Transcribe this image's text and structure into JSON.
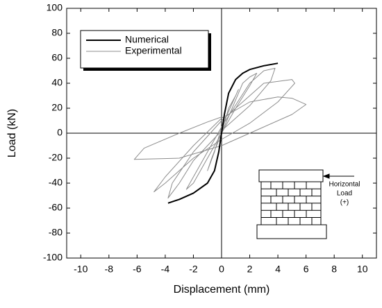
{
  "chart_data": {
    "type": "line",
    "xlabel": "Displacement (mm)",
    "ylabel": "Load (kN)",
    "xlim": [
      -11,
      11
    ],
    "xticks": [
      -10,
      -8,
      -6,
      -4,
      -2,
      0,
      2,
      4,
      6,
      8,
      10
    ],
    "ylim": [
      -100,
      100
    ],
    "yticks": [
      -100,
      -80,
      -60,
      -40,
      -20,
      0,
      20,
      40,
      60,
      80,
      100
    ],
    "legend": "upper-left",
    "series": [
      {
        "name": "Numerical",
        "color": "#000000",
        "x": [
          -3.8,
          -3,
          -2,
          -1,
          -0.5,
          -0.2,
          0,
          0.2,
          0.5,
          1,
          1.5,
          2,
          3,
          4
        ],
        "values": [
          -56,
          -53,
          -48,
          -40,
          -30,
          -15,
          0,
          15,
          32,
          43,
          48,
          51,
          54,
          56
        ]
      },
      {
        "name": "Experimental",
        "color": "#8c8c8c",
        "x": [
          0,
          0.5,
          1,
          1.2,
          0.8,
          0,
          -0.5,
          -1,
          -0.7,
          0,
          1.5,
          2,
          2.5,
          2,
          1,
          0,
          -1,
          -2,
          -2.5,
          -2,
          -1,
          0,
          2,
          3,
          3.8,
          3.5,
          2,
          0,
          -2,
          -3,
          -3.8,
          -3.5,
          -2,
          0,
          3,
          5,
          5.2,
          4,
          2,
          0,
          -2,
          -4,
          -4.8,
          -4,
          -2,
          0,
          2,
          4,
          5,
          6,
          5,
          3,
          0,
          -3,
          -6.2,
          -5.5,
          -3,
          -1,
          0
        ],
        "values": [
          0,
          20,
          30,
          35,
          25,
          5,
          -15,
          -30,
          -20,
          0,
          40,
          45,
          48,
          38,
          20,
          0,
          -20,
          -40,
          -45,
          -35,
          -15,
          5,
          40,
          50,
          52,
          42,
          22,
          2,
          -22,
          -40,
          -52,
          -40,
          -15,
          10,
          40,
          43,
          40,
          25,
          8,
          -5,
          -20,
          -40,
          -47,
          -35,
          -10,
          12,
          25,
          29,
          28,
          23,
          15,
          5,
          -10,
          -20,
          -21,
          -12,
          0,
          9,
          13
        ]
      }
    ],
    "annotation": [
      "Horizontal",
      "Load",
      "(+)"
    ]
  }
}
